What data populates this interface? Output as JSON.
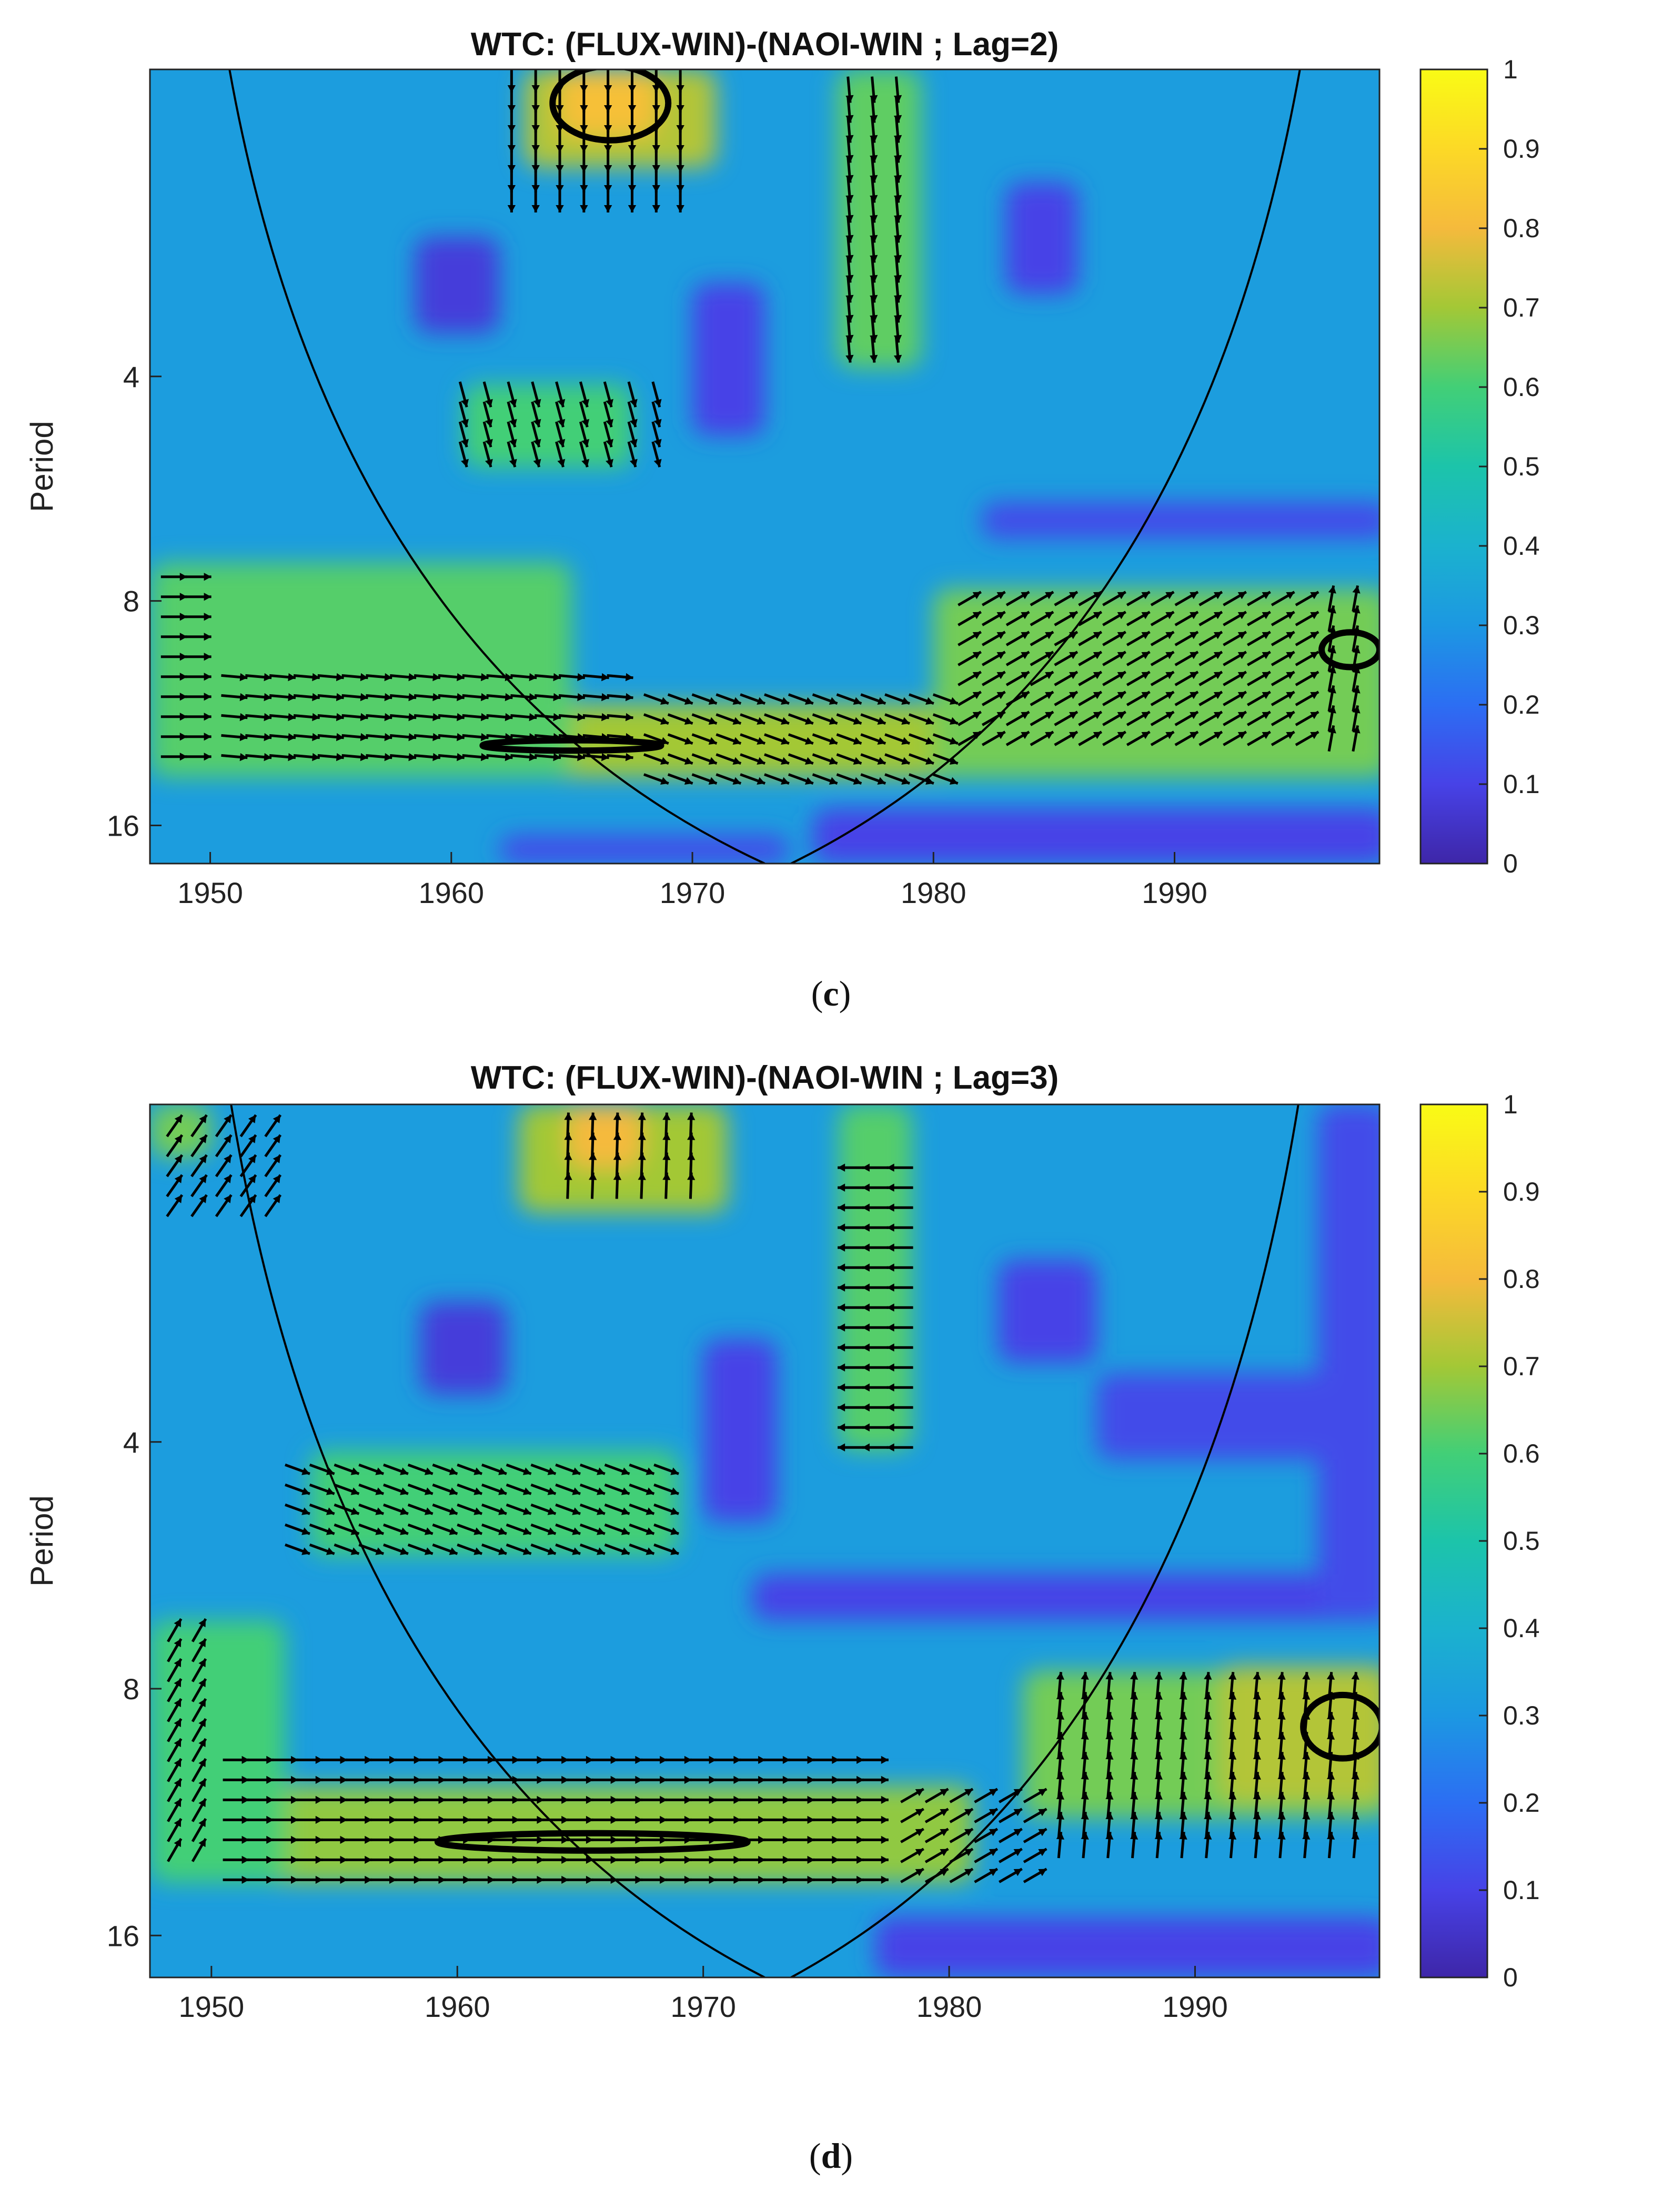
{
  "panels": [
    {
      "caption": "c",
      "chart_data": {
        "type": "heatmap",
        "title": "WTC: (FLUX-WIN)-(NAOI-WIN ; Lag=2)",
        "xlabel": "",
        "ylabel": "Period",
        "xlim": [
          1947.5,
          1998.5
        ],
        "ylim_period": [
          1.55,
          18
        ],
        "y_scale": "log2",
        "x_ticks": [
          1950,
          1960,
          1970,
          1980,
          1990
        ],
        "y_ticks": [
          4,
          8,
          16
        ],
        "colorbar": {
          "min": 0,
          "max": 1,
          "ticks": [
            0,
            0.1,
            0.2,
            0.3,
            0.4,
            0.5,
            0.6,
            0.7,
            0.8,
            0.9,
            1
          ]
        },
        "colormap": "parula",
        "background_coherence": 0.32,
        "cone_of_influence": {
          "apex_year": 1973,
          "left_edge_top_year": 1950.8,
          "right_edge_top_year": 1995.2
        },
        "coherence_regions": [
          {
            "x0": 1947.5,
            "x1": 1999,
            "p0": 11,
            "p1": 13.8,
            "value": 0.7
          },
          {
            "x0": 1947.5,
            "x1": 1965,
            "p0": 7.1,
            "p1": 13.8,
            "value": 0.62
          },
          {
            "x0": 1980,
            "x1": 1999,
            "p0": 7.7,
            "p1": 13.8,
            "value": 0.65
          },
          {
            "x0": 1963,
            "x1": 1971,
            "p0": 1.55,
            "p1": 2.1,
            "value": 0.72
          },
          {
            "x0": 1964.5,
            "x1": 1968.5,
            "p0": 1.55,
            "p1": 1.9,
            "value": 0.82
          },
          {
            "x0": 1976,
            "x1": 1979.5,
            "p0": 1.55,
            "p1": 3.9,
            "value": 0.63
          },
          {
            "x0": 1960.5,
            "x1": 1967.5,
            "p0": 4.1,
            "p1": 5.3,
            "value": 0.6
          },
          {
            "x0": 1958.5,
            "x1": 1962,
            "p0": 2.6,
            "p1": 3.5,
            "value": 0.08
          },
          {
            "x0": 1970,
            "x1": 1973,
            "p0": 3.0,
            "p1": 4.8,
            "value": 0.1
          },
          {
            "x0": 1983,
            "x1": 1986,
            "p0": 2.2,
            "p1": 3.1,
            "value": 0.1
          },
          {
            "x0": 1982,
            "x1": 1999,
            "p0": 5.9,
            "p1": 6.6,
            "value": 0.12
          },
          {
            "x0": 1975,
            "x1": 1999,
            "p0": 15.2,
            "p1": 18,
            "value": 0.1
          },
          {
            "x0": 1962,
            "x1": 1974,
            "p0": 16.5,
            "p1": 18,
            "value": 0.12
          }
        ],
        "significance_contours": [
          {
            "cx": 1966.6,
            "p": 1.72,
            "rx": 2.4,
            "rp": [
              1.55,
              1.95
            ]
          },
          {
            "cx": 1965,
            "p": 12.5,
            "rx": 3.7,
            "rp": [
              12.3,
              12.7
            ]
          },
          {
            "cx": 1997.3,
            "p": 9.3,
            "rx": 1.2,
            "rp": [
              8.8,
              9.8
            ]
          }
        ],
        "arrow_groups": [
          {
            "x0": 1948,
            "x1": 1950.5,
            "p0": 7.2,
            "p1": 13.5,
            "angle_deg": 0
          },
          {
            "x0": 1950.5,
            "x1": 1968,
            "p0": 9.8,
            "p1": 13.5,
            "angle_deg": -5
          },
          {
            "x0": 1968,
            "x1": 1981,
            "p0": 10.5,
            "p1": 14.5,
            "angle_deg": -20
          },
          {
            "x0": 1981,
            "x1": 1996,
            "p0": 7.7,
            "p1": 13,
            "angle_deg": 30
          },
          {
            "x0": 1996,
            "x1": 1998.5,
            "p0": 7.7,
            "p1": 13,
            "angle_deg": 80
          },
          {
            "x0": 1962,
            "x1": 1969.5,
            "p0": 1.55,
            "p1": 2.4,
            "angle_deg": -90
          },
          {
            "x0": 1976,
            "x1": 1979.5,
            "p0": 1.6,
            "p1": 3.8,
            "angle_deg": -85
          },
          {
            "x0": 1960,
            "x1": 1968.5,
            "p0": 4.1,
            "p1": 5.3,
            "angle_deg": -75
          }
        ]
      }
    },
    {
      "caption": "d",
      "chart_data": {
        "type": "heatmap",
        "title": "WTC: (FLUX-WIN)-(NAOI-WIN ; Lag=3)",
        "xlabel": "",
        "ylabel": "Period",
        "xlim": [
          1947.5,
          1997.5
        ],
        "ylim_period": [
          1.55,
          18
        ],
        "y_scale": "log2",
        "x_ticks": [
          1950,
          1960,
          1970,
          1980,
          1990
        ],
        "y_ticks": [
          4,
          8,
          16
        ],
        "colorbar": {
          "min": 0,
          "max": 1,
          "ticks": [
            0,
            0.1,
            0.2,
            0.3,
            0.4,
            0.5,
            0.6,
            0.7,
            0.8,
            0.9,
            1
          ]
        },
        "colormap": "parula",
        "background_coherence": 0.32,
        "cone_of_influence": {
          "apex_year": 1972.5,
          "left_edge_top_year": 1950.8,
          "right_edge_top_year": 1994.2
        },
        "coherence_regions": [
          {
            "x0": 1947.5,
            "x1": 1981,
            "p0": 10.5,
            "p1": 13.8,
            "value": 0.68
          },
          {
            "x0": 1947.5,
            "x1": 1953,
            "p0": 6.6,
            "p1": 13.8,
            "value": 0.6
          },
          {
            "x0": 1983,
            "x1": 1998,
            "p0": 7.6,
            "p1": 11.5,
            "value": 0.65
          },
          {
            "x0": 1991,
            "x1": 1998,
            "p0": 7.5,
            "p1": 11,
            "value": 0.72
          },
          {
            "x0": 1962.5,
            "x1": 1971,
            "p0": 1.55,
            "p1": 2.1,
            "value": 0.7
          },
          {
            "x0": 1964.5,
            "x1": 1967.5,
            "p0": 1.55,
            "p1": 1.85,
            "value": 0.8
          },
          {
            "x0": 1947.5,
            "x1": 1950,
            "p0": 1.55,
            "p1": 1.8,
            "value": 0.65
          },
          {
            "x0": 1975.5,
            "x1": 1978.5,
            "p0": 1.55,
            "p1": 4.1,
            "value": 0.62
          },
          {
            "x0": 1954,
            "x1": 1969,
            "p0": 4.1,
            "p1": 5.5,
            "value": 0.6
          },
          {
            "x0": 1958.5,
            "x1": 1962,
            "p0": 2.7,
            "p1": 3.5,
            "value": 0.08
          },
          {
            "x0": 1970,
            "x1": 1973,
            "p0": 3.0,
            "p1": 5.0,
            "value": 0.1
          },
          {
            "x0": 1982,
            "x1": 1986,
            "p0": 2.4,
            "p1": 3.2,
            "value": 0.1
          },
          {
            "x0": 1972,
            "x1": 1998,
            "p0": 5.8,
            "p1": 6.6,
            "value": 0.1
          },
          {
            "x0": 1986,
            "x1": 1998,
            "p0": 3.3,
            "p1": 4.2,
            "value": 0.12
          },
          {
            "x0": 1995,
            "x1": 1998,
            "p0": 1.55,
            "p1": 6.5,
            "value": 0.12
          },
          {
            "x0": 1977,
            "x1": 1998,
            "p0": 15.2,
            "p1": 18,
            "value": 0.1
          }
        ],
        "significance_contours": [
          {
            "cx": 1965.5,
            "p": 12.3,
            "rx": 6.3,
            "rp": [
              12.0,
              12.6
            ]
          },
          {
            "cx": 1996,
            "p": 8.9,
            "rx": 1.6,
            "rp": [
              8.2,
              9.8
            ]
          }
        ],
        "arrow_groups": [
          {
            "x0": 1948,
            "x1": 1950.5,
            "p0": 6.6,
            "p1": 13,
            "angle_deg": 60
          },
          {
            "x0": 1950.5,
            "x1": 1978,
            "p0": 9.5,
            "p1": 14,
            "angle_deg": 0
          },
          {
            "x0": 1978,
            "x1": 1984,
            "p0": 10.5,
            "p1": 14,
            "angle_deg": 30
          },
          {
            "x0": 1984,
            "x1": 1997,
            "p0": 7.7,
            "p1": 13,
            "angle_deg": 85
          },
          {
            "x0": 1953,
            "x1": 1969,
            "p0": 4.2,
            "p1": 5.5,
            "angle_deg": -20
          },
          {
            "x0": 1964,
            "x1": 1970,
            "p0": 1.6,
            "p1": 2.0,
            "angle_deg": 88
          },
          {
            "x0": 1975.5,
            "x1": 1978.5,
            "p0": 1.8,
            "p1": 4.1,
            "angle_deg": 180
          },
          {
            "x0": 1948,
            "x1": 1953.5,
            "p0": 1.6,
            "p1": 2.1,
            "angle_deg": 55
          }
        ]
      }
    }
  ]
}
